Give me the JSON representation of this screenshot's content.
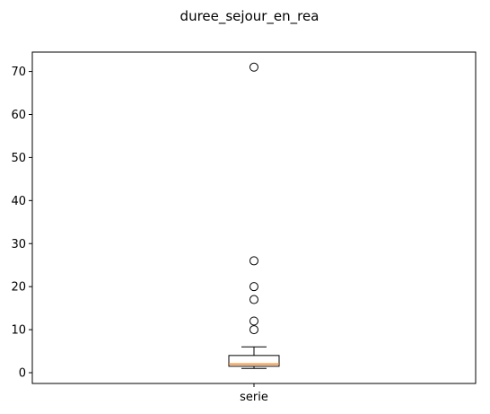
{
  "chart_data": {
    "type": "boxplot",
    "title": "duree_sejour_en_rea",
    "xlabel": "",
    "ylabel": "",
    "categories": [
      "serie"
    ],
    "ylim": [
      -2.5,
      74.5
    ],
    "yticks": [
      0,
      10,
      20,
      30,
      40,
      50,
      60,
      70
    ],
    "grid": false,
    "series": [
      {
        "name": "",
        "whisker_low": 1,
        "q1": 1.5,
        "median": 2,
        "q3": 4,
        "whisker_high": 6,
        "outliers": [
          10,
          12,
          17,
          20,
          26,
          71
        ]
      }
    ],
    "colors": {
      "box": "#000000",
      "median": "#ff7f0e",
      "whisker": "#000000",
      "outlier": "#000000"
    }
  }
}
